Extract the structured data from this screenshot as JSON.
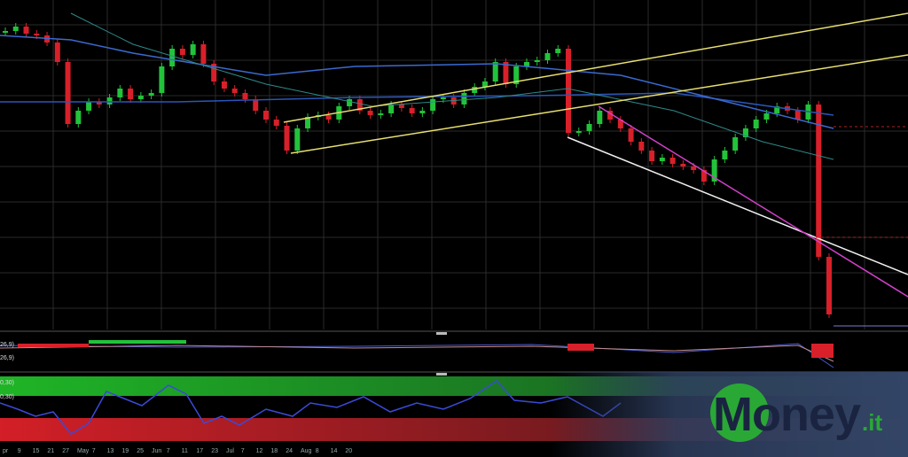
{
  "chart_data": {
    "type": "candlestick",
    "up_color": "#22c33a",
    "down_color": "#d8202a",
    "ylim": [
      0,
      37
    ],
    "values": [
      33.5,
      34,
      33.2,
      33,
      32.2,
      30,
      23,
      24.5,
      25.5,
      25.2,
      26,
      27,
      25.8,
      26.2,
      26.5,
      29.5,
      31.5,
      30.8,
      32,
      29.8,
      27.8,
      27,
      26.5,
      25.8,
      24.5,
      23.5,
      22.8,
      20,
      22.5,
      23.8,
      24,
      23.5,
      25,
      25.8,
      24.5,
      24,
      24.2,
      25.2,
      24.8,
      24.2,
      24.5,
      25.8,
      26,
      25.2,
      26.5,
      27.2,
      27.8,
      30,
      27.5,
      29.5,
      30,
      30.2,
      31,
      31.5,
      22,
      22.2,
      23,
      24.5,
      23.5,
      22.5,
      21,
      20,
      18.8,
      19.2,
      18.5,
      18.2,
      17.8,
      16.5,
      19,
      20,
      21.5,
      22.5,
      23.5,
      24.2,
      25,
      24.5,
      23.5,
      25.2,
      8,
      1.5
    ],
    "panel_labels": [
      "26,9)",
      "26,9)",
      "0,30)",
      "0,30)"
    ],
    "x_labels": [
      "pr",
      "9",
      "15",
      "21",
      "27",
      "May",
      "7",
      "13",
      "19",
      "25",
      "Jun",
      "7",
      "11",
      "17",
      "23",
      "Jul",
      "7",
      "12",
      "18",
      "24",
      "Aug",
      "8",
      "14",
      "20"
    ]
  },
  "logo": {
    "main": "Money",
    "suffix": ".it"
  }
}
